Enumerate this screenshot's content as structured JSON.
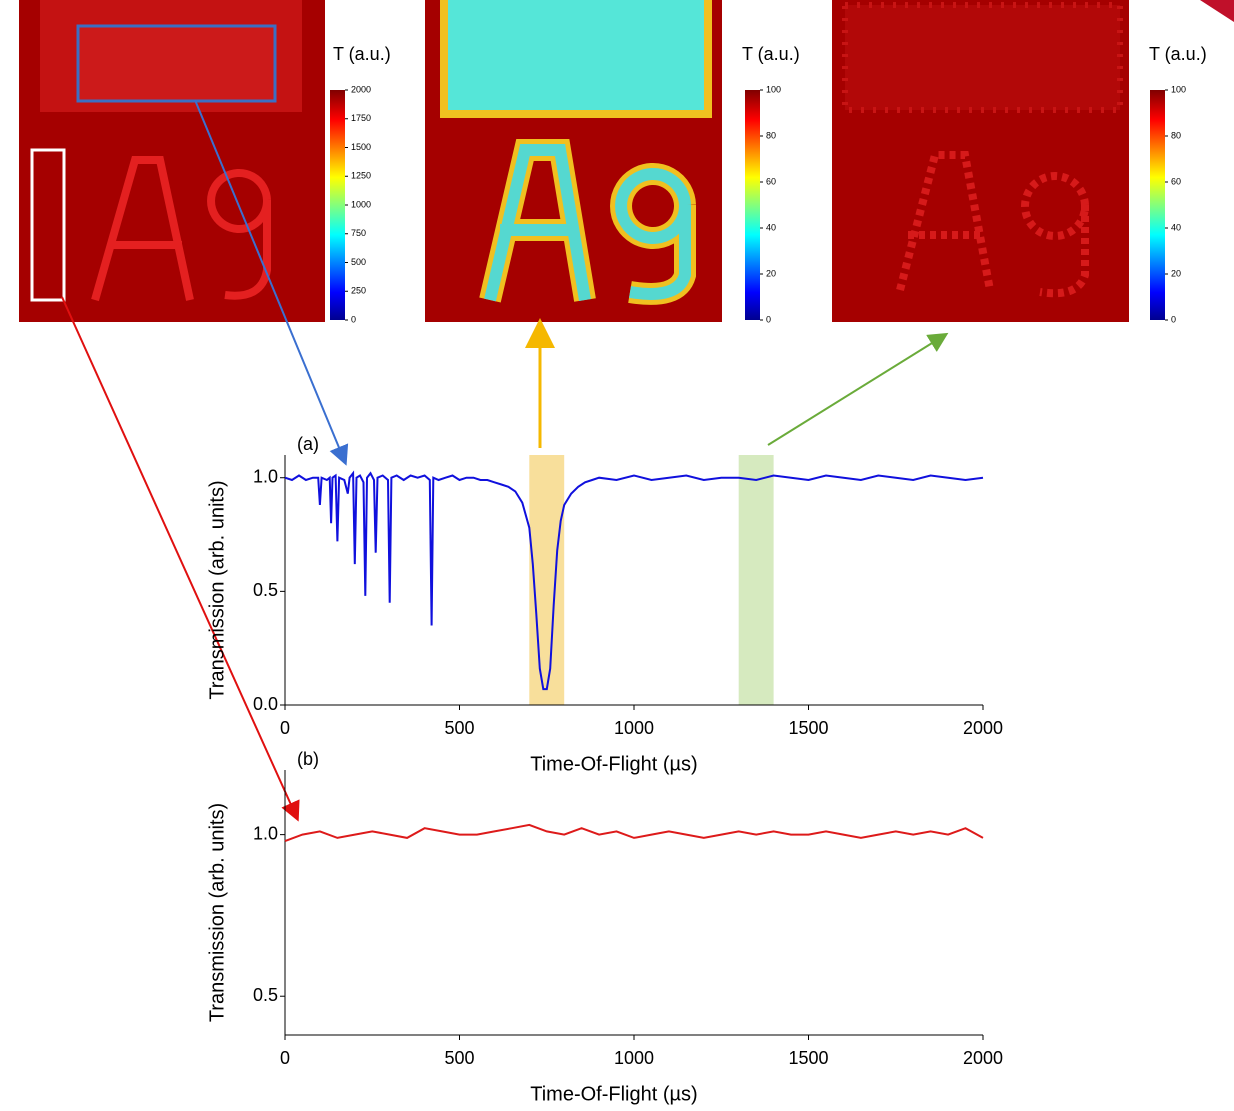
{
  "colorbars": [
    {
      "label": "T (a.u.)",
      "lim": [
        0,
        2000
      ],
      "ticks": [
        0,
        250,
        500,
        750,
        1000,
        1250,
        1500,
        1750,
        2000
      ]
    },
    {
      "label": "T (a.u.)",
      "lim": [
        0,
        100
      ],
      "ticks": [
        0,
        20,
        40,
        60,
        80,
        100
      ]
    },
    {
      "label": "T (a.u.)",
      "lim": [
        0,
        100
      ],
      "ticks": [
        0,
        20,
        40,
        60,
        80,
        100
      ]
    }
  ],
  "chart_data": [
    {
      "type": "line",
      "label": "(a)",
      "xlabel": "Time-Of-Flight (µs)",
      "ylabel": "Transmission (arb. units)",
      "color": "#1010dd",
      "xlim": [
        0,
        2000
      ],
      "xticks": [
        0,
        500,
        1000,
        1500,
        2000
      ],
      "ylim": [
        0,
        1.1
      ],
      "yticks": [
        {
          "value": 0,
          "label": "0.0"
        },
        0.5,
        {
          "value": 1,
          "label": "1.0"
        }
      ],
      "bands": [
        {
          "xlim": [
            700,
            800
          ],
          "color": "#f7d98a"
        },
        {
          "xlim": [
            1300,
            1400
          ],
          "color": "#cfe6b4"
        }
      ],
      "x": [
        0,
        20,
        40,
        60,
        80,
        95,
        100,
        105,
        120,
        128,
        132,
        136,
        145,
        150,
        155,
        170,
        180,
        185,
        195,
        200,
        205,
        215,
        225,
        230,
        235,
        245,
        255,
        260,
        265,
        280,
        295,
        300,
        305,
        320,
        340,
        360,
        380,
        400,
        415,
        420,
        425,
        440,
        460,
        480,
        500,
        520,
        540,
        560,
        580,
        600,
        620,
        640,
        660,
        680,
        700,
        710,
        720,
        730,
        740,
        750,
        760,
        770,
        780,
        790,
        800,
        820,
        840,
        860,
        880,
        900,
        950,
        1000,
        1050,
        1100,
        1150,
        1200,
        1250,
        1300,
        1350,
        1400,
        1450,
        1500,
        1550,
        1600,
        1650,
        1700,
        1750,
        1800,
        1850,
        1900,
        1950,
        2000
      ],
      "values": [
        1.0,
        0.99,
        1.01,
        0.99,
        1.0,
        1.0,
        0.88,
        1.0,
        0.99,
        1.0,
        0.8,
        1.0,
        1.01,
        0.72,
        1.0,
        0.99,
        0.93,
        1.0,
        1.02,
        0.62,
        1.0,
        1.01,
        0.98,
        0.48,
        1.0,
        1.02,
        0.99,
        0.67,
        1.0,
        1.01,
        0.99,
        0.45,
        1.0,
        1.01,
        0.99,
        1.01,
        1.0,
        1.01,
        0.99,
        0.35,
        1.0,
        0.99,
        1.0,
        1.01,
        0.99,
        1.0,
        1.0,
        0.99,
        0.99,
        0.98,
        0.97,
        0.96,
        0.94,
        0.89,
        0.78,
        0.62,
        0.4,
        0.16,
        0.07,
        0.07,
        0.16,
        0.44,
        0.68,
        0.81,
        0.88,
        0.93,
        0.96,
        0.98,
        0.99,
        1.0,
        0.99,
        1.01,
        0.99,
        1.0,
        1.01,
        0.99,
        1.0,
        1.0,
        0.99,
        1.01,
        1.0,
        0.99,
        1.01,
        1.0,
        0.99,
        1.01,
        1.0,
        0.99,
        1.01,
        1.0,
        0.99,
        1.0
      ]
    },
    {
      "type": "line",
      "label": "(b)",
      "xlabel": "Time-Of-Flight (µs)",
      "ylabel": "Transmission (arb. units)",
      "color": "#dd1a1a",
      "xlim": [
        0,
        2000
      ],
      "xticks": [
        0,
        500,
        1000,
        1500,
        2000
      ],
      "ylim": [
        0.38,
        1.2
      ],
      "yticks": [
        0.5,
        {
          "value": 1,
          "label": "1.0"
        }
      ],
      "x": [
        0,
        50,
        100,
        150,
        200,
        250,
        300,
        350,
        400,
        450,
        500,
        550,
        600,
        650,
        700,
        750,
        800,
        850,
        900,
        950,
        1000,
        1050,
        1100,
        1150,
        1200,
        1250,
        1300,
        1350,
        1400,
        1450,
        1500,
        1550,
        1600,
        1650,
        1700,
        1750,
        1800,
        1850,
        1900,
        1950,
        2000
      ],
      "values": [
        0.98,
        1.0,
        1.01,
        0.99,
        1.0,
        1.01,
        1.0,
        0.99,
        1.02,
        1.01,
        1.0,
        1.0,
        1.01,
        1.02,
        1.03,
        1.01,
        1.0,
        1.02,
        1.0,
        1.01,
        0.99,
        1.0,
        1.01,
        1.0,
        0.99,
        1.0,
        1.01,
        1.0,
        1.01,
        1.0,
        1.0,
        1.01,
        1.0,
        0.99,
        1.0,
        1.01,
        1.0,
        1.01,
        1.0,
        1.02,
        0.99
      ]
    }
  ]
}
